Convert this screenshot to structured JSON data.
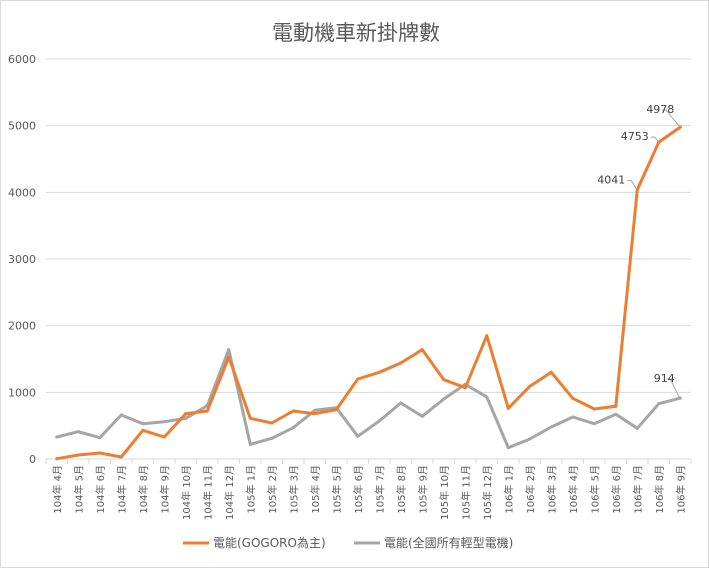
{
  "chart_data": {
    "type": "line",
    "title": "電動機車新掛牌數",
    "xlabel": "",
    "ylabel": "",
    "ylim": [
      0,
      6000
    ],
    "yticks": [
      0,
      1000,
      2000,
      3000,
      4000,
      5000,
      6000
    ],
    "grid": true,
    "legend_position": "bottom",
    "categories": [
      "104年 4月",
      "104年 5月",
      "104年 6月",
      "104年 7月",
      "104年 8月",
      "104年 9月",
      "104年 10月",
      "104年 11月",
      "104年 12月",
      "105年 1月",
      "105年 2月",
      "105年 3月",
      "105年 4月",
      "105年 5月",
      "105年 6月",
      "105年 7月",
      "105年 8月",
      "105年 9月",
      "105年 10月",
      "105年 11月",
      "105年 12月",
      "106年 1月",
      "106年 2月",
      "106年 3月",
      "106年 4月",
      "106年 5月",
      "106年 6月",
      "106年 7月",
      "106年 8月",
      "106年 9月"
    ],
    "series": [
      {
        "name": "電能(GOGORO為主)",
        "color": "#ed7d31",
        "values": [
          5,
          60,
          90,
          30,
          430,
          330,
          680,
          720,
          1530,
          610,
          540,
          720,
          680,
          740,
          1200,
          1300,
          1440,
          1640,
          1190,
          1070,
          1850,
          760,
          1090,
          1300,
          910,
          750,
          790,
          4041,
          4753,
          4978
        ],
        "data_labels": [
          {
            "index": 27,
            "text": "4041"
          },
          {
            "index": 28,
            "text": "4753"
          },
          {
            "index": 29,
            "text": "4978"
          }
        ]
      },
      {
        "name": "電能(全國所有輕型電機)",
        "color": "#a5a5a5",
        "values": [
          330,
          410,
          320,
          660,
          530,
          560,
          610,
          800,
          1640,
          220,
          310,
          470,
          730,
          770,
          340,
          570,
          840,
          640,
          900,
          1120,
          930,
          170,
          300,
          480,
          630,
          530,
          670,
          460,
          830,
          914
        ],
        "data_labels": [
          {
            "index": 29,
            "text": "914"
          }
        ]
      }
    ]
  }
}
